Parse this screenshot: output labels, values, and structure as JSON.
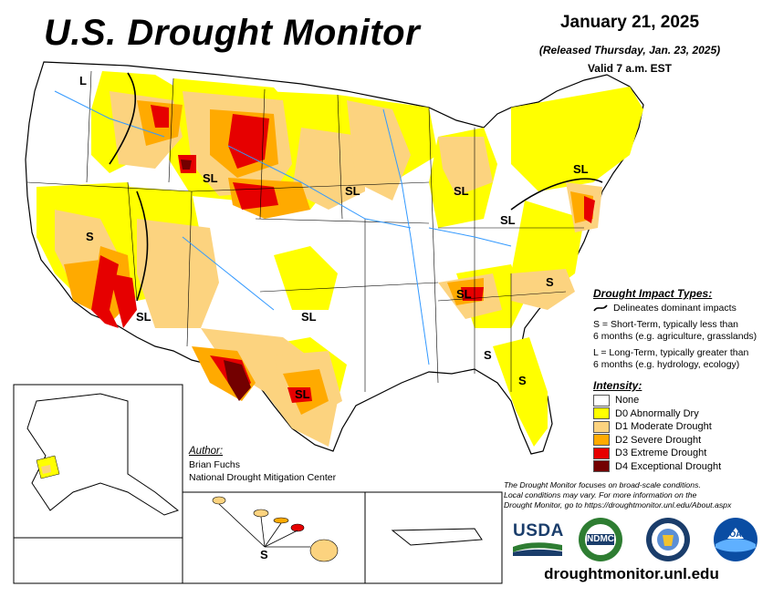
{
  "title": "U.S. Drought Monitor",
  "date": "January 21, 2025",
  "released": "(Released Thursday, Jan. 23, 2025)",
  "valid": "Valid 7 a.m. EST",
  "legend": {
    "impact_heading": "Drought Impact Types:",
    "delineates": "Delineates dominant impacts",
    "short_term_1": "S = Short-Term, typically less than",
    "short_term_2": "6 months (e.g. agriculture, grasslands)",
    "long_term_1": "L = Long-Term, typically greater than",
    "long_term_2": "6 months (e.g. hydrology, ecology)",
    "intensity_heading": "Intensity:",
    "levels": [
      {
        "label": "None",
        "color": "#ffffff"
      },
      {
        "label": "D0 Abnormally Dry",
        "color": "#ffff00"
      },
      {
        "label": "D1 Moderate Drought",
        "color": "#fcd37f"
      },
      {
        "label": "D2 Severe Drought",
        "color": "#ffaa00"
      },
      {
        "label": "D3 Extreme Drought",
        "color": "#e60000"
      },
      {
        "label": "D4 Exceptional Drought",
        "color": "#730000"
      }
    ]
  },
  "author": {
    "heading": "Author:",
    "name": "Brian Fuchs",
    "org": "National Drought Mitigation Center"
  },
  "disclaimer_1": "The Drought Monitor focuses on broad-scale conditions.",
  "disclaimer_2": "Local conditions may vary. For more information on the",
  "disclaimer_3": "Drought Monitor, go to https://droughtmonitor.unl.edu/About.aspx",
  "map_labels": {
    "sl": "SL",
    "s": "S",
    "l": "L"
  },
  "logos": {
    "usda": "USDA",
    "ndmc": "NDMC",
    "commerce": "commerce-seal-icon",
    "noaa": "NOAA"
  },
  "url": "droughtmonitor.unl.edu"
}
